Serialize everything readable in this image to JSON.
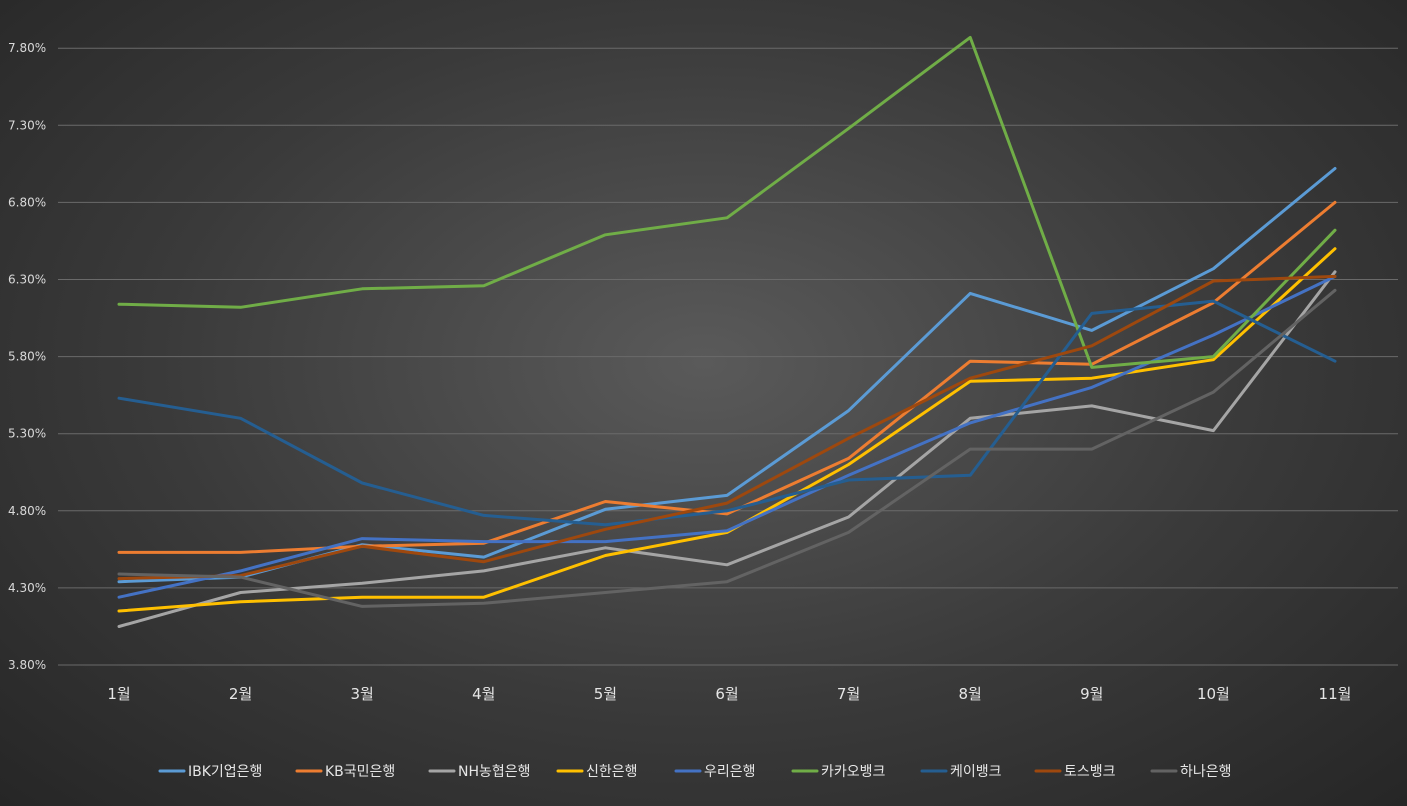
{
  "chart_data": {
    "type": "line",
    "categories": [
      "1월",
      "2월",
      "3월",
      "4월",
      "5월",
      "6월",
      "7월",
      "8월",
      "9월",
      "10월",
      "11월"
    ],
    "y_ticks": [
      "3.80%",
      "4.30%",
      "4.80%",
      "5.30%",
      "5.80%",
      "6.30%",
      "6.80%",
      "7.30%",
      "7.80%"
    ],
    "ylim": [
      3.8,
      8.0
    ],
    "grid": true,
    "legend_position": "bottom",
    "series": [
      {
        "name": "IBK기업은행",
        "color": "#5b9bd5",
        "values": [
          4.34,
          4.37,
          4.58,
          4.5,
          4.81,
          4.9,
          5.45,
          6.21,
          5.97,
          6.37,
          7.02
        ]
      },
      {
        "name": "KB국민은행",
        "color": "#ed7d31",
        "values": [
          4.53,
          4.53,
          4.57,
          4.59,
          4.86,
          4.78,
          5.14,
          5.77,
          5.75,
          6.15,
          6.8
        ]
      },
      {
        "name": "NH농협은행",
        "color": "#a5a5a5",
        "values": [
          4.05,
          4.27,
          4.33,
          4.41,
          4.56,
          4.45,
          4.76,
          5.4,
          5.48,
          5.32,
          6.35
        ]
      },
      {
        "name": "신한은행",
        "color": "#ffc000",
        "values": [
          4.15,
          4.21,
          4.24,
          4.24,
          4.51,
          4.66,
          5.1,
          5.64,
          5.66,
          5.78,
          6.5
        ]
      },
      {
        "name": "우리은행",
        "color": "#4472c4",
        "values": [
          4.24,
          4.41,
          4.62,
          4.6,
          4.6,
          4.67,
          5.03,
          5.37,
          5.6,
          5.94,
          6.32
        ]
      },
      {
        "name": "카카오뱅크",
        "color": "#70ad47",
        "values": [
          6.14,
          6.12,
          6.24,
          6.26,
          6.59,
          6.7,
          7.28,
          7.87,
          5.73,
          5.8,
          6.62
        ]
      },
      {
        "name": "케이뱅크",
        "color": "#255e91",
        "values": [
          5.53,
          5.4,
          4.98,
          4.77,
          4.71,
          4.8,
          5.0,
          5.03,
          6.08,
          6.16,
          5.77
        ]
      },
      {
        "name": "토스뱅크",
        "color": "#9e480e",
        "values": [
          4.36,
          4.38,
          4.57,
          4.47,
          4.68,
          4.85,
          5.27,
          5.66,
          5.87,
          6.29,
          6.32
        ]
      },
      {
        "name": "하나은행",
        "color": "#636363",
        "values": [
          4.39,
          4.37,
          4.18,
          4.2,
          4.27,
          4.34,
          4.66,
          5.2,
          5.2,
          5.57,
          6.23
        ]
      }
    ]
  }
}
